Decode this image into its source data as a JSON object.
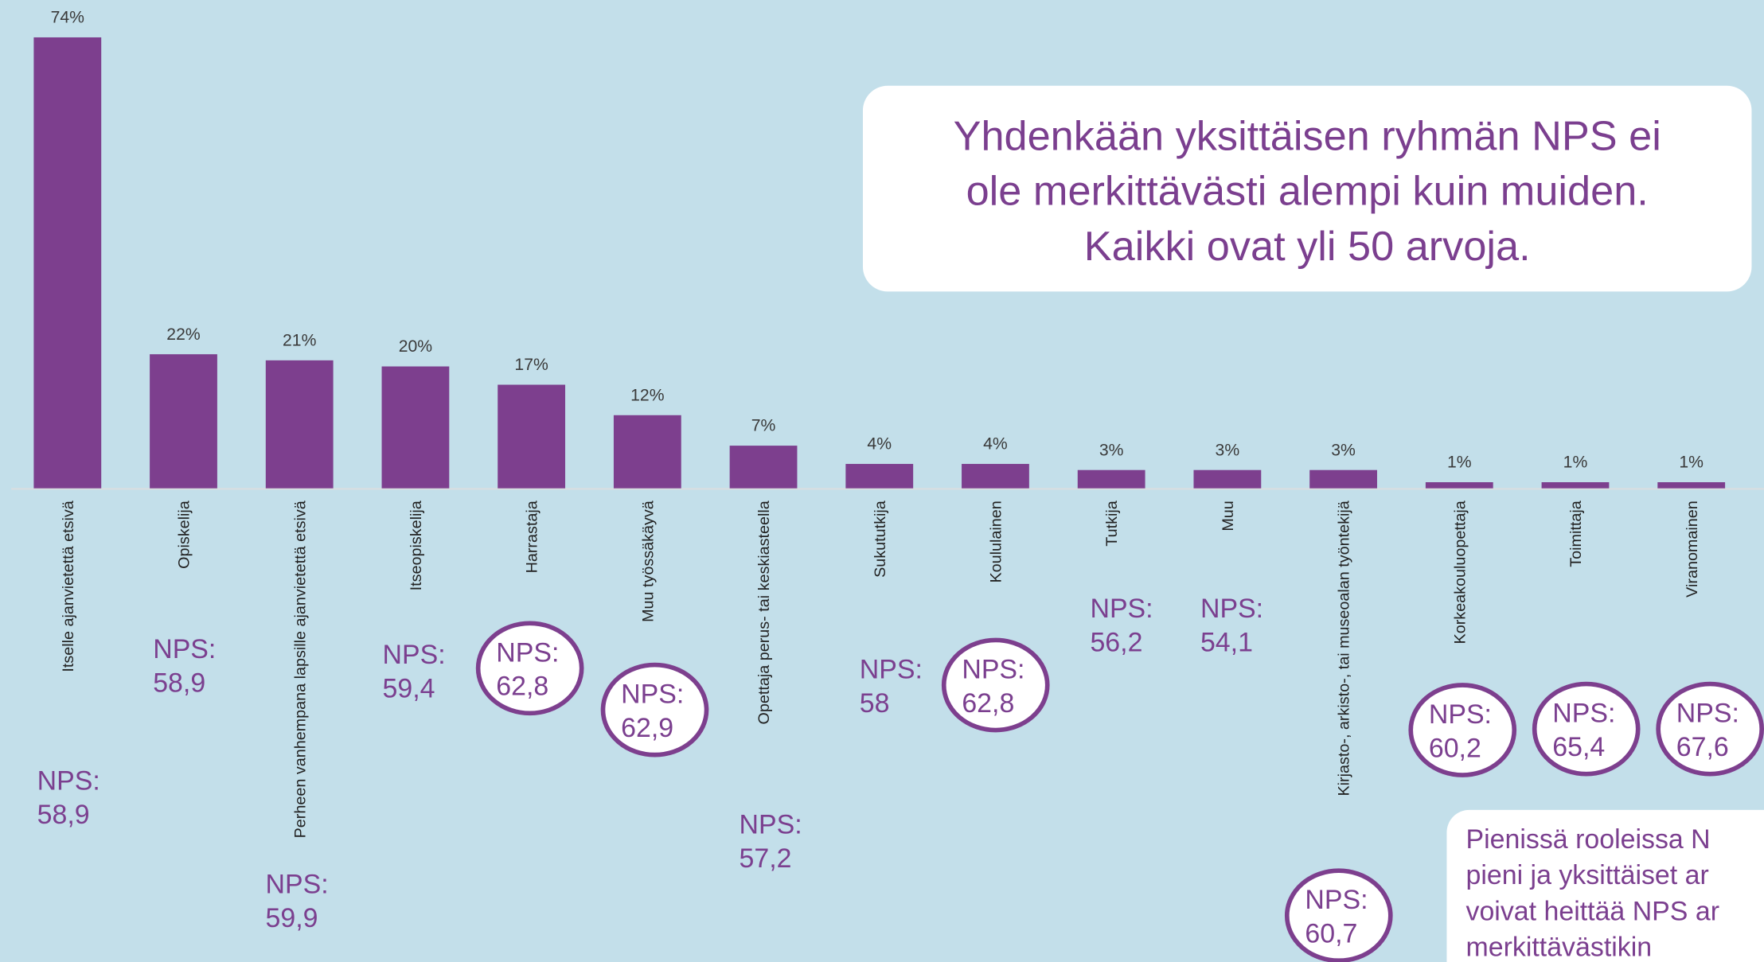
{
  "chart_data": {
    "type": "bar",
    "categories": [
      "Itselle ajanvietettä etsivä",
      "Opiskelija",
      "Perheen vanhempana lapsille ajanvietettä etsivä",
      "Itseopiskelija",
      "Harrastaja",
      "Muu työssäkäyvä",
      "Opettaja perus- tai keskiasteella",
      "Sukututkija",
      "Koululainen",
      "Tutkija",
      "Muu",
      "Kirjasto-, arkisto-, tai museoalan työntekijä",
      "Korkeakouluopettaja",
      "Toimittaja",
      "Viranomainen"
    ],
    "values": [
      74,
      22,
      21,
      20,
      17,
      12,
      7,
      4,
      4,
      3,
      3,
      3,
      1,
      1,
      1
    ],
    "value_labels": [
      "74%",
      "22%",
      "21%",
      "20%",
      "17%",
      "12%",
      "7%",
      "4%",
      "4%",
      "3%",
      "3%",
      "3%",
      "1%",
      "1%",
      "1%"
    ],
    "color": "#7d3f8e",
    "nps_prefix": "NPS:",
    "nps": [
      "58,9",
      "58,9",
      "59,9",
      "59,4",
      "62,8",
      "62,9",
      "57,2",
      "58",
      "62,8",
      "56,2",
      "54,1",
      "60,7",
      "60,2",
      "65,4",
      "67,6"
    ],
    "nps_circled": [
      false,
      false,
      false,
      false,
      true,
      true,
      false,
      false,
      true,
      false,
      false,
      true,
      true,
      true,
      true
    ],
    "callout": [
      "Yhdenkään yksittäisen ryhmän NPS ei",
      "ole merkittävästi alempi kuin muiden.",
      "Kaikki ovat yli 50 arvoja."
    ],
    "note": [
      "Pienissä rooleissa N",
      "pieni ja  yksittäiset ar",
      "voivat heittää NPS ar",
      "merkittävästikin"
    ]
  }
}
